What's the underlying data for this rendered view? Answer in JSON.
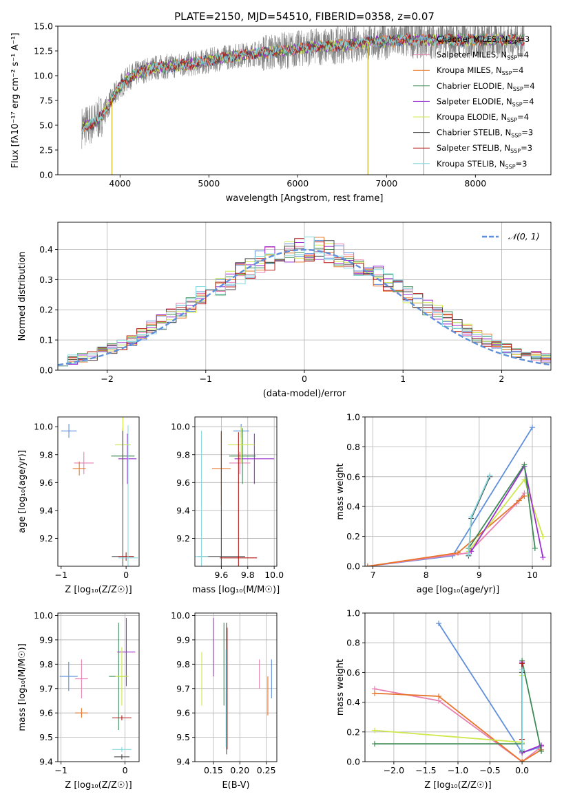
{
  "figure": {
    "title": "PLATE=2150, MJD=54510, FIBERID=0358, z=0.07"
  },
  "colors": {
    "Chabrier MILES": "#5f8fdb",
    "Salpeter MILES": "#e87fb1",
    "Kroupa MILES": "#e8742a",
    "Chabrier ELODIE": "#3b8a54",
    "Salpeter ELODIE": "#9b2ed1",
    "Kroupa ELODIE": "#cde84a",
    "Chabrier STELIB": "#4a4a4a",
    "Salpeter STELIB": "#b21a1a",
    "Kroupa STELIB": "#86d8df",
    "data": "#808080",
    "normal": "#5f8fdb"
  },
  "chart_data": [
    {
      "id": "spectrum",
      "type": "line",
      "title": "PLATE=2150, MJD=54510, FIBERID=0358, z=0.07",
      "xlabel": "wavelength [Angstrom, rest frame]",
      "ylabel": "Flux [fλ10⁻¹⁷ erg cm⁻² s⁻¹ A⁻¹]",
      "xlim": [
        3300,
        8850
      ],
      "ylim": [
        0,
        15
      ],
      "xticks": [
        4000,
        5000,
        6000,
        7000,
        8000
      ],
      "yticks": [
        0,
        2.5,
        5.0,
        7.5,
        10.0,
        12.5,
        15.0
      ],
      "ytick_labels": [
        "0.0",
        "2.5",
        "5.0",
        "7.5",
        "10.0",
        "12.5",
        "15.0"
      ],
      "grid": false,
      "legend": "right",
      "legend_entries": [
        {
          "name": "Chabrier MILES",
          "nssp": "3"
        },
        {
          "name": "Salpeter MILES",
          "nssp": "4"
        },
        {
          "name": "Kroupa MILES",
          "nssp": "4"
        },
        {
          "name": "Chabrier ELODIE",
          "nssp": "4"
        },
        {
          "name": "Salpeter ELODIE",
          "nssp": "4"
        },
        {
          "name": "Kroupa ELODIE",
          "nssp": "4"
        },
        {
          "name": "Chabrier STELIB",
          "nssp": "3"
        },
        {
          "name": "Salpeter STELIB",
          "nssp": "3"
        },
        {
          "name": "Kroupa STELIB",
          "nssp": "3"
        }
      ],
      "continuum": {
        "x": [
          3570,
          3700,
          3800,
          3900,
          4000,
          4100,
          4200,
          4300,
          4400,
          4600,
          4800,
          5000,
          5200,
          5400,
          5600,
          5800,
          6000,
          6200,
          6400,
          6600,
          6800,
          7000,
          7200,
          7400
        ],
        "y": [
          4.8,
          5.2,
          6.0,
          7.5,
          8.9,
          9.8,
          10.3,
          10.6,
          10.8,
          11.0,
          11.2,
          11.5,
          11.9,
          12.1,
          12.3,
          12.5,
          12.7,
          12.9,
          13.0,
          13.2,
          13.4,
          13.5,
          13.6,
          13.6
        ]
      },
      "model_extent": {
        "Kroupa STELIB": [
          3570,
          8550
        ]
      },
      "spikes": [
        {
          "x": 3910,
          "y": 0
        },
        {
          "x": 6790,
          "y": 0
        },
        {
          "x": 7420,
          "y": 0
        }
      ]
    },
    {
      "id": "residuals",
      "type": "histogram",
      "xlabel": "(data-model)/error",
      "ylabel": "Normed distribution",
      "xlim": [
        -2.5,
        2.5
      ],
      "ylim": [
        0,
        0.49
      ],
      "xticks": [
        -2,
        -1,
        0,
        1,
        2
      ],
      "xtick_labels": [
        "−2",
        "−1",
        "0",
        "1",
        "2"
      ],
      "yticks": [
        0,
        0.1,
        0.2,
        0.3,
        0.4
      ],
      "ytick_labels": [
        "0.0",
        "0.1",
        "0.2",
        "0.3",
        "0.4"
      ],
      "grid": true,
      "legend": "top-right",
      "legend_label": "𝒩(0, 1)",
      "bin_width": 0.1,
      "bin_start": -2.5,
      "base": [
        0.03,
        0.035,
        0.04,
        0.05,
        0.06,
        0.07,
        0.085,
        0.1,
        0.12,
        0.14,
        0.16,
        0.18,
        0.2,
        0.22,
        0.25,
        0.27,
        0.28,
        0.3,
        0.32,
        0.34,
        0.36,
        0.37,
        0.38,
        0.39,
        0.4,
        0.4,
        0.4,
        0.39,
        0.38,
        0.37,
        0.35,
        0.33,
        0.31,
        0.29,
        0.27,
        0.25,
        0.23,
        0.21,
        0.19,
        0.17,
        0.15,
        0.13,
        0.11,
        0.1,
        0.085,
        0.07,
        0.06,
        0.05,
        0.045,
        0.04
      ],
      "normal": {
        "mu": 0,
        "sigma": 1
      }
    },
    {
      "id": "age-vs-Z",
      "type": "errorbar",
      "xlabel": "Z [log₁₀(Z/Z☉)]",
      "ylabel": "age  [log₁₀(age/yr)]",
      "xlim": [
        -1.05,
        0.2
      ],
      "ylim": [
        9.0,
        10.07
      ],
      "xticks": [
        -1,
        0
      ],
      "xtick_labels": [
        "−1",
        "0"
      ],
      "yticks": [
        9.2,
        9.4,
        9.6,
        9.8,
        10.0
      ],
      "ytick_labels": [
        "9.2",
        "9.4",
        "9.6",
        "9.8",
        "10.0"
      ],
      "grid": false,
      "points": [
        {
          "model": "Chabrier MILES",
          "x": -0.88,
          "xerr": 0.12,
          "y": 9.97,
          "yerr": 0.05
        },
        {
          "model": "Salpeter MILES",
          "x": -0.65,
          "xerr": 0.15,
          "y": 9.74,
          "yerr": 0.08
        },
        {
          "model": "Kroupa MILES",
          "x": -0.72,
          "xerr": 0.1,
          "y": 9.7,
          "yerr": 0.05
        },
        {
          "model": "Chabrier ELODIE",
          "x": -0.05,
          "xerr": 0.18,
          "y": 9.79,
          "yerr": 0.2
        },
        {
          "model": "Salpeter ELODIE",
          "x": 0.02,
          "xerr": 0.14,
          "y": 9.77,
          "yerr": 0.18
        },
        {
          "model": "Kroupa ELODIE",
          "x": -0.05,
          "xerr": 0.12,
          "y": 9.87,
          "yerr": 0.3
        },
        {
          "model": "Chabrier STELIB",
          "x": -0.05,
          "xerr": 0.17,
          "y": 9.07,
          "yerr": 0.9
        },
        {
          "model": "Salpeter STELIB",
          "x": 0.0,
          "xerr": 0.12,
          "y": 9.07,
          "yerr": 0.03
        },
        {
          "model": "Kroupa STELIB",
          "x": 0.03,
          "xerr": 0.15,
          "y": 9.06,
          "yerr": 0.95
        }
      ]
    },
    {
      "id": "age-vs-mass",
      "type": "errorbar",
      "xlabel": "mass [log₁₀(M/M☉)]",
      "ylabel": "",
      "xlim": [
        9.4,
        10.02
      ],
      "ylim": [
        9.0,
        10.07
      ],
      "xticks": [
        9.6,
        9.8,
        10.0
      ],
      "xtick_labels": [
        "9.6",
        "9.8",
        "10.0"
      ],
      "yticks": [
        9.2,
        9.4,
        9.6,
        9.8,
        10.0
      ],
      "ytick_labels": [
        "9.2",
        "9.4",
        "9.6",
        "9.8",
        "10.0"
      ],
      "grid": true,
      "points": [
        {
          "model": "Chabrier MILES",
          "x": 9.75,
          "xerr": 0.06,
          "y": 9.97,
          "yerr": 0.05
        },
        {
          "model": "Salpeter MILES",
          "x": 9.74,
          "xerr": 0.08,
          "y": 9.74,
          "yerr": 0.08
        },
        {
          "model": "Kroupa MILES",
          "x": 9.6,
          "xerr": 0.07,
          "y": 9.7,
          "yerr": 0.26
        },
        {
          "model": "Chabrier ELODIE",
          "x": 9.76,
          "xerr": 0.1,
          "y": 9.79,
          "yerr": 0.2
        },
        {
          "model": "Salpeter ELODIE",
          "x": 9.85,
          "xerr": 0.15,
          "y": 9.77,
          "yerr": 0.18
        },
        {
          "model": "Kroupa ELODIE",
          "x": 9.75,
          "xerr": 0.1,
          "y": 9.87,
          "yerr": 0.13
        },
        {
          "model": "Chabrier STELIB",
          "x": 9.6,
          "xerr": 0.18,
          "y": 9.07,
          "yerr": 0.9
        },
        {
          "model": "Salpeter STELIB",
          "x": 9.73,
          "xerr": 0.14,
          "y": 9.06,
          "yerr": 0.9
        },
        {
          "model": "Kroupa STELIB",
          "x": 9.45,
          "xerr": 0.05,
          "y": 9.07,
          "yerr": 0.9
        }
      ]
    },
    {
      "id": "weight-vs-age",
      "type": "line",
      "xlabel": "age  [log₁₀(age/yr)]",
      "ylabel": "mass weight",
      "xlim": [
        6.85,
        10.35
      ],
      "ylim": [
        0,
        1.0
      ],
      "xticks": [
        7,
        8,
        9,
        10
      ],
      "xtick_labels": [
        "7",
        "8",
        "9",
        "10"
      ],
      "yticks": [
        0,
        0.2,
        0.4,
        0.6,
        0.8,
        1.0
      ],
      "ytick_labels": [
        "0.0",
        "0.2",
        "0.4",
        "0.6",
        "0.8",
        "1.0"
      ],
      "grid": true,
      "series": [
        {
          "model": "Chabrier MILES",
          "x": [
            6.9,
            8.5,
            10.0
          ],
          "y": [
            0.0,
            0.07,
            0.93
          ]
        },
        {
          "model": "Salpeter MILES",
          "x": [
            6.9,
            8.8,
            9.7,
            9.85
          ],
          "y": [
            0.0,
            0.09,
            0.42,
            0.49
          ]
        },
        {
          "model": "Kroupa MILES",
          "x": [
            6.9,
            8.6,
            9.75,
            9.85
          ],
          "y": [
            0.0,
            0.09,
            0.44,
            0.47
          ]
        },
        {
          "model": "Kroupa ELODIE",
          "x": [
            8.8,
            9.85,
            10.2
          ],
          "y": [
            0.1,
            0.58,
            0.2
          ]
        },
        {
          "model": "Salpeter ELODIE",
          "x": [
            8.85,
            9.85,
            10.2
          ],
          "y": [
            0.1,
            0.67,
            0.06
          ]
        },
        {
          "model": "Chabrier ELODIE",
          "x": [
            8.8,
            9.85,
            10.05
          ],
          "y": [
            0.12,
            0.68,
            0.12
          ]
        },
        {
          "model": "Chabrier STELIB",
          "x": [
            8.8,
            8.85,
            9.2
          ],
          "y": [
            0.07,
            0.32,
            0.6
          ]
        },
        {
          "model": "Kroupa STELIB",
          "x": [
            8.8,
            8.85,
            9.2
          ],
          "y": [
            0.08,
            0.33,
            0.61
          ]
        }
      ]
    },
    {
      "id": "mass-vs-Z",
      "type": "errorbar",
      "xlabel": "Z [log₁₀(Z/Z☉)]",
      "ylabel": "mass [log₁₀(M/M☉)]",
      "xlim": [
        -1.05,
        0.22
      ],
      "ylim": [
        9.4,
        10.01
      ],
      "xticks": [
        -1,
        0
      ],
      "xtick_labels": [
        "−1",
        "0"
      ],
      "yticks": [
        9.4,
        9.5,
        9.6,
        9.7,
        9.8,
        9.9,
        10.0
      ],
      "ytick_labels": [
        "9.4",
        "9.5",
        "9.6",
        "9.7",
        "9.8",
        "9.9",
        "10.0"
      ],
      "grid": true,
      "points": [
        {
          "model": "Chabrier MILES",
          "x": -0.88,
          "xerr": 0.14,
          "y": 9.75,
          "yerr": 0.06
        },
        {
          "model": "Salpeter MILES",
          "x": -0.68,
          "xerr": 0.1,
          "y": 9.74,
          "yerr": 0.08
        },
        {
          "model": "Kroupa MILES",
          "x": -0.68,
          "xerr": 0.1,
          "y": 9.6,
          "yerr": 0.02
        },
        {
          "model": "Chabrier ELODIE",
          "x": -0.1,
          "xerr": 0.15,
          "y": 9.75,
          "yerr": 0.22
        },
        {
          "model": "Salpeter ELODIE",
          "x": 0.02,
          "xerr": 0.14,
          "y": 9.85,
          "yerr": 0.14
        },
        {
          "model": "Kroupa ELODIE",
          "x": -0.05,
          "xerr": 0.1,
          "y": 9.75,
          "yerr": 0.12
        },
        {
          "model": "Chabrier STELIB",
          "x": -0.05,
          "xerr": 0.12,
          "y": 9.42,
          "yerr": 0.01
        },
        {
          "model": "Salpeter STELIB",
          "x": -0.05,
          "xerr": 0.15,
          "y": 9.58,
          "yerr": 0.01
        },
        {
          "model": "Kroupa STELIB",
          "x": -0.05,
          "xerr": 0.15,
          "y": 9.45,
          "yerr": 0.01
        }
      ]
    },
    {
      "id": "mass-vs-ebv",
      "type": "errorbar",
      "xlabel": "E(B-V)",
      "ylabel": "",
      "xlim": [
        0.115,
        0.27
      ],
      "ylim": [
        9.4,
        10.01
      ],
      "xticks": [
        0.15,
        0.2,
        0.25
      ],
      "xtick_labels": [
        "0.15",
        "0.20",
        "0.25"
      ],
      "yticks": [
        9.4,
        9.5,
        9.6,
        9.7,
        9.8,
        9.9,
        10.0
      ],
      "ytick_labels": [
        "9.4",
        "9.5",
        "9.6",
        "9.7",
        "9.8",
        "9.9",
        "10.0"
      ],
      "grid": true,
      "points": [
        {
          "model": "Chabrier MILES",
          "x": 0.26,
          "xerr": 0,
          "y": 9.74,
          "yerr": 0.08
        },
        {
          "model": "Salpeter MILES",
          "x": 0.237,
          "xerr": 0,
          "y": 9.76,
          "yerr": 0.06
        },
        {
          "model": "Kroupa MILES",
          "x": 0.253,
          "xerr": 0,
          "y": 9.67,
          "yerr": 0.08
        },
        {
          "model": "Chabrier ELODIE",
          "x": 0.17,
          "xerr": 0,
          "y": 9.8,
          "yerr": 0.17
        },
        {
          "model": "Salpeter ELODIE",
          "x": 0.15,
          "xerr": 0,
          "y": 9.87,
          "yerr": 0.12
        },
        {
          "model": "Kroupa ELODIE",
          "x": 0.128,
          "xerr": 0,
          "y": 9.74,
          "yerr": 0.11
        },
        {
          "model": "Chabrier STELIB",
          "x": 0.175,
          "xerr": 0,
          "y": 9.7,
          "yerr": 0.27
        },
        {
          "model": "Salpeter STELIB",
          "x": 0.176,
          "xerr": 0,
          "y": 9.7,
          "yerr": 0.25
        },
        {
          "model": "Kroupa STELIB",
          "x": 0.174,
          "xerr": 0,
          "y": 9.66,
          "yerr": 0.2
        }
      ]
    },
    {
      "id": "weight-vs-Z",
      "type": "line",
      "xlabel": "Z [log₁₀(Z/Z☉)]",
      "ylabel": "mass weight",
      "xlim": [
        -2.45,
        0.45
      ],
      "ylim": [
        0,
        1.0
      ],
      "xticks": [
        -2.0,
        -1.5,
        -1.0,
        -0.5,
        0.0
      ],
      "xtick_labels": [
        "−2.0",
        "−1.5",
        "−1.0",
        "−0.5",
        "0.0"
      ],
      "yticks": [
        0,
        0.2,
        0.4,
        0.6,
        0.8,
        1.0
      ],
      "ytick_labels": [
        "0.0",
        "0.2",
        "0.4",
        "0.6",
        "0.8",
        "1.0"
      ],
      "grid": true,
      "series": [
        {
          "model": "Chabrier MILES",
          "x": [
            -1.3,
            0.0,
            0.3
          ],
          "y": [
            0.93,
            0.06,
            0.1
          ]
        },
        {
          "model": "Salpeter MILES",
          "x": [
            -2.3,
            -1.3,
            0.0,
            0.3
          ],
          "y": [
            0.49,
            0.41,
            0.0,
            0.1
          ]
        },
        {
          "model": "Kroupa MILES",
          "x": [
            -2.3,
            -1.3,
            0.0,
            0.3
          ],
          "y": [
            0.46,
            0.44,
            0.0,
            0.08
          ]
        },
        {
          "model": "Kroupa ELODIE",
          "x": [
            -2.3,
            0.0,
            0.0
          ],
          "y": [
            0.21,
            0.13,
            0.58
          ]
        },
        {
          "model": "Salpeter ELODIE",
          "x": [
            0.0,
            0.0,
            0.3
          ],
          "y": [
            0.67,
            0.06,
            0.11
          ]
        },
        {
          "model": "Chabrier ELODIE",
          "x": [
            -2.3,
            0.0,
            0.0,
            0.3
          ],
          "y": [
            0.12,
            0.12,
            0.68,
            0.07
          ]
        },
        {
          "model": "Chabrier STELIB",
          "x": [
            0.0,
            0.0
          ],
          "y": [
            0.07,
            0.6
          ]
        },
        {
          "model": "Salpeter STELIB",
          "x": [
            0.0,
            0.0
          ],
          "y": [
            0.15,
            0.66
          ]
        },
        {
          "model": "Kroupa STELIB",
          "x": [
            0.0,
            0.0
          ],
          "y": [
            0.08,
            0.62
          ]
        }
      ]
    }
  ]
}
